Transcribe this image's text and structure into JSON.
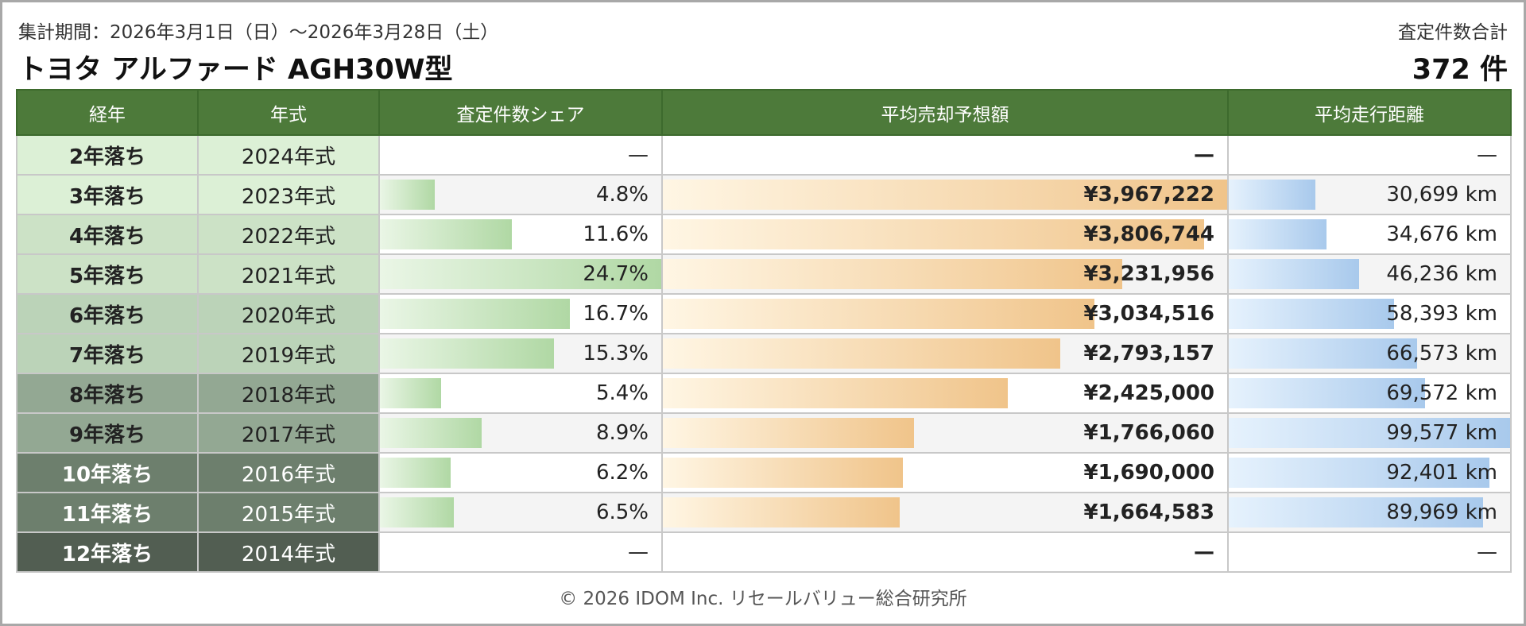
{
  "header": {
    "period": "集計期間：2026年3月1日（日）〜2026年3月28日（土）",
    "title": "トヨタ アルファード AGH30W型",
    "total_label": "査定件数合計",
    "total_value": "372 件"
  },
  "columns": [
    "経年",
    "年式",
    "査定件数シェア",
    "平均売却予想額",
    "平均走行距離"
  ],
  "rows": [
    {
      "age": "2年落ち",
      "year": "2024年式",
      "share": "—",
      "price": "—",
      "mileage": "—",
      "share_pct": 0,
      "price_val": 0,
      "mileage_val": 0,
      "age_color": "#dcf0d6",
      "dark": false
    },
    {
      "age": "3年落ち",
      "year": "2023年式",
      "share": "4.8%",
      "price": "¥3,967,222",
      "mileage": "30,699 km",
      "share_pct": 4.8,
      "price_val": 3967222,
      "mileage_val": 30699,
      "age_color": "#dcf0d6",
      "dark": false
    },
    {
      "age": "4年落ち",
      "year": "2022年式",
      "share": "11.6%",
      "price": "¥3,806,744",
      "mileage": "34,676 km",
      "share_pct": 11.6,
      "price_val": 3806744,
      "mileage_val": 34676,
      "age_color": "#cce2c6",
      "dark": false
    },
    {
      "age": "5年落ち",
      "year": "2021年式",
      "share": "24.7%",
      "price": "¥3,231,956",
      "mileage": "46,236 km",
      "share_pct": 24.7,
      "price_val": 3231956,
      "mileage_val": 46236,
      "age_color": "#cce2c6",
      "dark": false
    },
    {
      "age": "6年落ち",
      "year": "2020年式",
      "share": "16.7%",
      "price": "¥3,034,516",
      "mileage": "58,393 km",
      "share_pct": 16.7,
      "price_val": 3034516,
      "mileage_val": 58393,
      "age_color": "#bbd3b8",
      "dark": false
    },
    {
      "age": "7年落ち",
      "year": "2019年式",
      "share": "15.3%",
      "price": "¥2,793,157",
      "mileage": "66,573 km",
      "share_pct": 15.3,
      "price_val": 2793157,
      "mileage_val": 66573,
      "age_color": "#bbd3b8",
      "dark": false
    },
    {
      "age": "8年落ち",
      "year": "2018年式",
      "share": "5.4%",
      "price": "¥2,425,000",
      "mileage": "69,572 km",
      "share_pct": 5.4,
      "price_val": 2425000,
      "mileage_val": 69572,
      "age_color": "#93a893",
      "dark": false
    },
    {
      "age": "9年落ち",
      "year": "2017年式",
      "share": "8.9%",
      "price": "¥1,766,060",
      "mileage": "99,577 km",
      "share_pct": 8.9,
      "price_val": 1766060,
      "mileage_val": 99577,
      "age_color": "#93a893",
      "dark": false
    },
    {
      "age": "10年落ち",
      "year": "2016年式",
      "share": "6.2%",
      "price": "¥1,690,000",
      "mileage": "92,401 km",
      "share_pct": 6.2,
      "price_val": 1690000,
      "mileage_val": 92401,
      "age_color": "#6d7f6d",
      "dark": true
    },
    {
      "age": "11年落ち",
      "year": "2015年式",
      "share": "6.5%",
      "price": "¥1,664,583",
      "mileage": "89,969 km",
      "share_pct": 6.5,
      "price_val": 1664583,
      "mileage_val": 89969,
      "age_color": "#6d7f6d",
      "dark": true
    },
    {
      "age": "12年落ち",
      "year": "2014年式",
      "share": "—",
      "price": "—",
      "mileage": "—",
      "share_pct": 0,
      "price_val": 0,
      "mileage_val": 0,
      "age_color": "#525e52",
      "dark": true
    }
  ],
  "footer": "© 2026 IDOM Inc. リセールバリュー総合研究所"
}
